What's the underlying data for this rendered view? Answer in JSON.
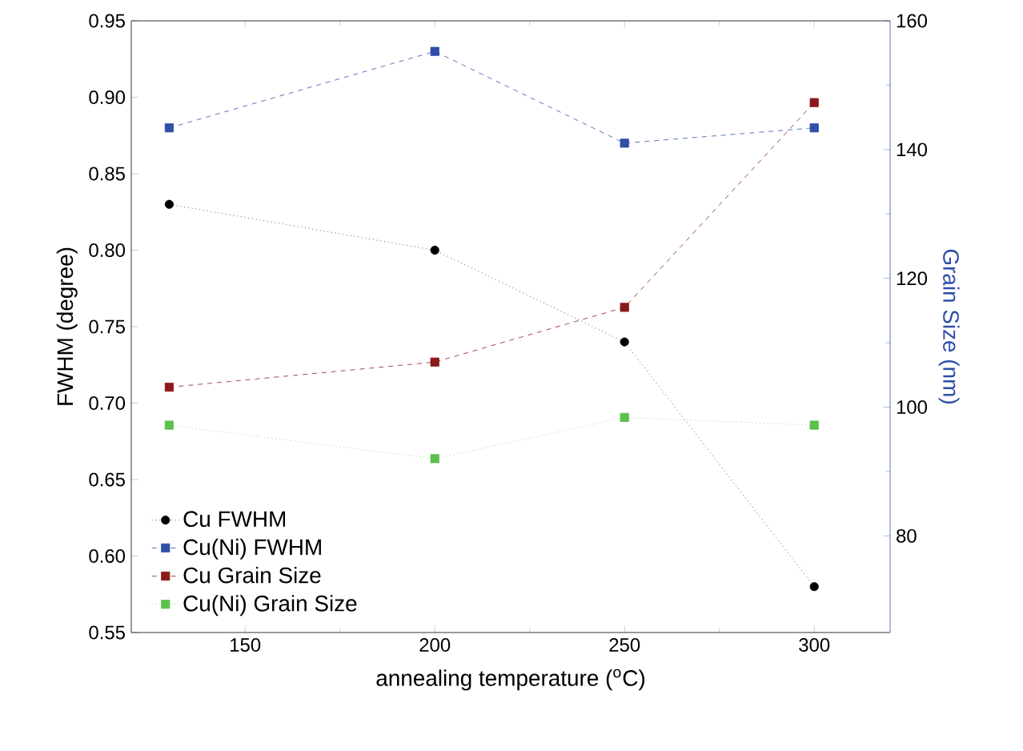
{
  "chart_data": {
    "type": "line",
    "xlabel": "annealing temperature ($^{o}$C)",
    "ylabel": "FWHM (degree)",
    "y2label": "Grain Size (nm)",
    "x": [
      130,
      200,
      250,
      300
    ],
    "series": [
      {
        "name": "Cu FWHM",
        "color": "#000000",
        "values": [
          0.83,
          0.8,
          0.74,
          0.58
        ],
        "marker": "circle",
        "line_style": "dotted"
      },
      {
        "name": "Cu(Ni) FWHM",
        "color": "#2f4fa8",
        "values": [
          0.88,
          0.93,
          0.87,
          0.88
        ],
        "marker": "square",
        "line_style": "dashed"
      },
      {
        "name": "Cu Grain Size",
        "color": "#8b1a1a",
        "values": [
          103.1,
          107.0,
          115.5,
          147.3
        ],
        "marker": "square",
        "line_style": "dashed",
        "axis": "y2"
      },
      {
        "name": "Cu(Ni) Grain Size",
        "color": "#5cc04c",
        "values": [
          97.2,
          92.0,
          98.4,
          97.2
        ],
        "marker": "square",
        "line_style": "dotted",
        "axis": "y2"
      }
    ],
    "xlim": [
      120,
      320
    ],
    "xticks": [
      150,
      200,
      250,
      300
    ],
    "ylim": [
      0.55,
      0.95
    ],
    "yticks": [
      {
        "value": 0.55,
        "label": "0.55"
      },
      {
        "value": 0.6,
        "label": "0.60"
      },
      {
        "value": 0.65,
        "label": "0.65"
      },
      {
        "value": 0.7,
        "label": "0.70"
      },
      {
        "value": 0.75,
        "label": "0.75"
      },
      {
        "value": 0.8,
        "label": "0.80"
      },
      {
        "value": 0.85,
        "label": "0.85"
      },
      {
        "value": 0.9,
        "label": "0.90"
      },
      {
        "value": 0.95,
        "label": "0.95"
      }
    ],
    "y2lim": [
      65,
      160
    ],
    "y2ticks": [
      80,
      100,
      120,
      140,
      160
    ],
    "legend": "bottom left",
    "grid": false
  }
}
